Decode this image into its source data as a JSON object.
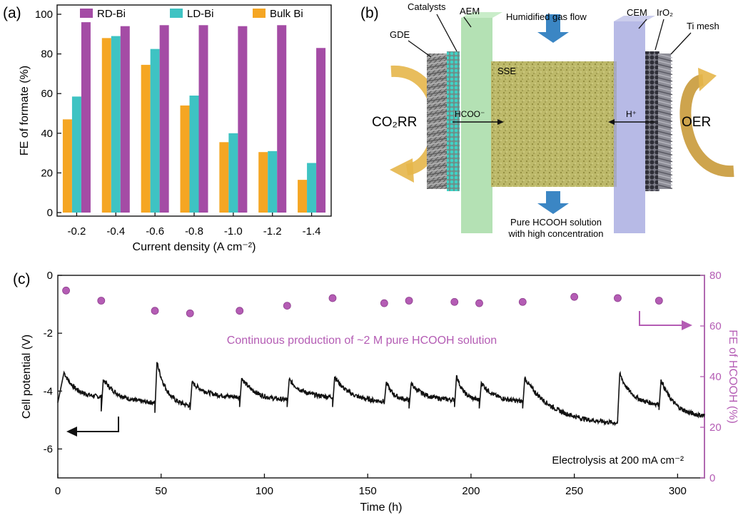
{
  "panel_a": {
    "label": "(a)",
    "ylabel": "FE of formate (%)",
    "xlabel": "Current density (A cm⁻²)",
    "legend": [
      "RD-Bi",
      "LD-Bi",
      "Bulk Bi"
    ]
  },
  "panel_b": {
    "label": "(b)",
    "labels": {
      "catalysts": "Catalysts",
      "aem": "AEM",
      "gde": "GDE",
      "gas": "Humidified gas flow",
      "cem": "CEM",
      "iro2": "IrO₂",
      "ti_mesh": "Ti mesh",
      "sse": "SSE",
      "co2rr": "CO₂RR",
      "oer": "OER",
      "hcoo": "HCOO⁻",
      "h_plus": "H⁺",
      "product_line1": "Pure HCOOH solution",
      "product_line2": "with high concentration"
    },
    "colors": {
      "gde": "#8c8c8c",
      "catalyst": "#3ccfc3",
      "aem": "#9bd79b",
      "sse": "#bdb96a",
      "cem": "#9fa3dd",
      "anode": "#3a3a44",
      "flow_arrow": "#3b86c4",
      "reaction_arrow": "#e6b64a"
    }
  },
  "panel_c": {
    "label": "(c)",
    "ylabel_left": "Cell potential (V)",
    "ylabel_right": "FE of HCOOH (%)",
    "xlabel": "Time (h)",
    "annotation_top": "Continuous production of ~2 M pure HCOOH solution",
    "annotation_bottom": "Electrolysis at 200 mA cm⁻²",
    "fe_color": "#b45cb4"
  },
  "chart_data": [
    {
      "type": "bar",
      "categories": [
        "-0.2",
        "-0.4",
        "-0.6",
        "-0.8",
        "-1.0",
        "-1.2",
        "-1.4"
      ],
      "series": [
        {
          "name": "Bulk Bi",
          "color": "#f5a623",
          "values": [
            47,
            88,
            74.5,
            54,
            35.5,
            30.5,
            16.5
          ]
        },
        {
          "name": "LD-Bi",
          "color": "#3ec3c3",
          "values": [
            58.5,
            89,
            82.5,
            59,
            40,
            31,
            25
          ]
        },
        {
          "name": "RD-Bi",
          "color": "#a44ca5",
          "values": [
            96,
            94,
            94.5,
            94.5,
            94,
            94.5,
            83
          ]
        }
      ],
      "ylabel": "FE of formate (%)",
      "xlabel": "Current density (A cm⁻²)",
      "ylim": [
        0,
        100
      ],
      "yticks": [
        0,
        20,
        40,
        60,
        80,
        100
      ],
      "legend": "top"
    },
    {
      "type": "line",
      "xlabel": "Time (h)",
      "ylabel": "Cell potential (V)",
      "xlim": [
        0,
        313
      ],
      "ylim": [
        -7,
        0
      ],
      "xticks": [
        0,
        50,
        100,
        150,
        200,
        250,
        300
      ],
      "yticks": [
        0,
        -2,
        -4,
        -6
      ],
      "segments": [
        {
          "t": [
            0,
            3,
            21
          ],
          "v": [
            -4.4,
            -3.35,
            -4.2
          ]
        },
        {
          "t": [
            21,
            22,
            47
          ],
          "v": [
            -4.7,
            -3.6,
            -4.4
          ]
        },
        {
          "t": [
            47,
            48,
            64
          ],
          "v": [
            -4.75,
            -3.0,
            -4.5
          ]
        },
        {
          "t": [
            64,
            65,
            88
          ],
          "v": [
            -4.65,
            -3.7,
            -4.2
          ]
        },
        {
          "t": [
            88,
            89,
            111
          ],
          "v": [
            -4.55,
            -3.55,
            -4.3
          ]
        },
        {
          "t": [
            111,
            112,
            133
          ],
          "v": [
            -4.55,
            -3.6,
            -4.2
          ]
        },
        {
          "t": [
            133,
            134,
            158
          ],
          "v": [
            -4.55,
            -3.5,
            -4.35
          ]
        },
        {
          "t": [
            158,
            159,
            170
          ],
          "v": [
            -4.45,
            -3.7,
            -4.3
          ]
        },
        {
          "t": [
            170,
            171,
            192
          ],
          "v": [
            -4.6,
            -3.75,
            -4.3
          ]
        },
        {
          "t": [
            192,
            193,
            204
          ],
          "v": [
            -4.55,
            -3.45,
            -4.3
          ]
        },
        {
          "t": [
            204,
            205,
            225
          ],
          "v": [
            -4.6,
            -3.7,
            -4.35
          ]
        },
        {
          "t": [
            225,
            226,
            271
          ],
          "v": [
            -4.6,
            -3.55,
            -5.1
          ]
        },
        {
          "t": [
            271,
            272,
            291
          ],
          "v": [
            -4.95,
            -3.4,
            -4.45
          ]
        },
        {
          "t": [
            291,
            292,
            313
          ],
          "v": [
            -4.65,
            -3.6,
            -4.85
          ]
        }
      ]
    },
    {
      "type": "scatter",
      "xlabel": "Time (h)",
      "ylabel": "FE of HCOOH (%)",
      "ylim": [
        0,
        80
      ],
      "yticks": [
        0,
        20,
        40,
        60,
        80
      ],
      "x": [
        4,
        21,
        47,
        64,
        88,
        111,
        133,
        158,
        170,
        192,
        204,
        225,
        250,
        271,
        291
      ],
      "y": [
        74,
        70,
        66,
        65,
        66,
        68,
        71,
        69,
        70,
        69.5,
        69,
        69.5,
        71.5,
        71,
        70
      ]
    }
  ]
}
